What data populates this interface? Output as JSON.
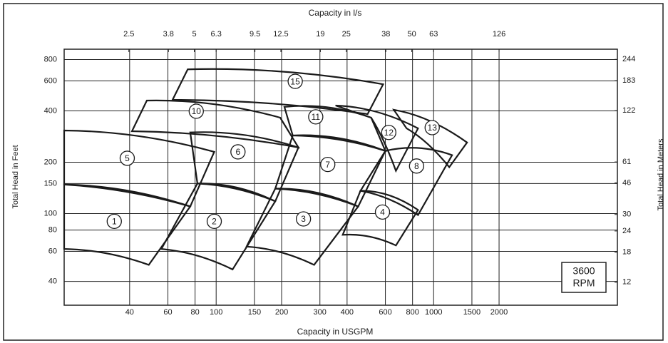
{
  "chart_data": {
    "type": "region",
    "title": "Capacity in l/s",
    "xlabel": "Capacity in USGPM",
    "ylabel": "Total Head in Feet",
    "y2label": "Total Head in Meters",
    "xscale": "log",
    "yscale": "log",
    "xlim": [
      20,
      7000
    ],
    "xticks": [
      40,
      60,
      80,
      100,
      150,
      200,
      300,
      400,
      600,
      800,
      1000,
      1500,
      2000
    ],
    "x2lim": [
      1.26,
      441
    ],
    "x2ticks": [
      2.5,
      3.8,
      5,
      6.3,
      9.5,
      12.5,
      19,
      25,
      38,
      50,
      63,
      126
    ],
    "ylim": [
      29,
      920
    ],
    "yticks": [
      40,
      60,
      80,
      100,
      150,
      200,
      400,
      600,
      800
    ],
    "y2lim": [
      8.8,
      280
    ],
    "y2ticks": [
      12,
      18,
      24,
      30,
      46,
      61,
      122,
      183,
      244
    ],
    "grid": true,
    "color": "#1a1a1a",
    "annotation_lines": [
      "3600",
      "RPM"
    ],
    "regions": [
      {
        "label": "1",
        "corners": [
          [
            20,
            148
          ],
          [
            76,
            110
          ],
          [
            49,
            50
          ],
          [
            20,
            62
          ]
        ],
        "label_at": [
          34,
          90
        ]
      },
      {
        "label": "5",
        "corners": [
          [
            20,
            307
          ],
          [
            98,
            230
          ],
          [
            76,
            110
          ],
          [
            20,
            148
          ]
        ],
        "label_at": [
          39,
          211
        ]
      },
      {
        "label": "2",
        "corners": [
          [
            82,
            150
          ],
          [
            187,
            118
          ],
          [
            119,
            47
          ],
          [
            56,
            62
          ]
        ],
        "label_at": [
          98,
          90
        ]
      },
      {
        "label": "6",
        "corners": [
          [
            76,
            299
          ],
          [
            239,
            244
          ],
          [
            187,
            118
          ],
          [
            82,
            150
          ]
        ],
        "label_at": [
          126,
          230
        ]
      },
      {
        "label": "10",
        "corners": [
          [
            48,
            460
          ],
          [
            197,
            365
          ],
          [
            239,
            244
          ],
          [
            41,
            304
          ]
        ],
        "label_at": [
          81,
          398
        ]
      },
      {
        "label": "15",
        "corners": [
          [
            74,
            701
          ],
          [
            586,
            573
          ],
          [
            497,
            383
          ],
          [
            63,
            464
          ]
        ],
        "label_at": [
          231,
          596
        ]
      },
      {
        "label": "3",
        "corners": [
          [
            187,
            140
          ],
          [
            450,
            110
          ],
          [
            282,
            50
          ],
          [
            138,
            64
          ]
        ],
        "label_at": [
          252,
          93
        ]
      },
      {
        "label": "7",
        "corners": [
          [
            225,
            287
          ],
          [
            600,
            233
          ],
          [
            450,
            110
          ],
          [
            187,
            140
          ]
        ],
        "label_at": [
          326,
          194
        ]
      },
      {
        "label": "11",
        "corners": [
          [
            206,
            422
          ],
          [
            516,
            365
          ],
          [
            600,
            233
          ],
          [
            225,
            287
          ]
        ],
        "label_at": [
          287,
          369
        ]
      },
      {
        "label": "4",
        "corners": [
          [
            461,
            136
          ],
          [
            848,
            105
          ],
          [
            671,
            65
          ],
          [
            382,
            75
          ]
        ],
        "label_at": [
          582,
          102
        ]
      },
      {
        "label": "12",
        "corners": [
          [
            354,
            430
          ],
          [
            848,
            316
          ],
          [
            671,
            178
          ],
          [
            516,
            365
          ]
        ],
        "label_at": [
          622,
          299
        ]
      },
      {
        "label": "8",
        "corners": [
          [
            600,
            233
          ],
          [
            1216,
            220
          ],
          [
            848,
            98
          ],
          [
            461,
            136
          ]
        ],
        "label_at": [
          835,
          190
        ]
      },
      {
        "label": "13",
        "corners": [
          [
            656,
            406
          ],
          [
            1425,
            261
          ],
          [
            1180,
            187
          ],
          [
            751,
            316
          ]
        ],
        "label_at": [
          985,
          319
        ]
      }
    ]
  }
}
